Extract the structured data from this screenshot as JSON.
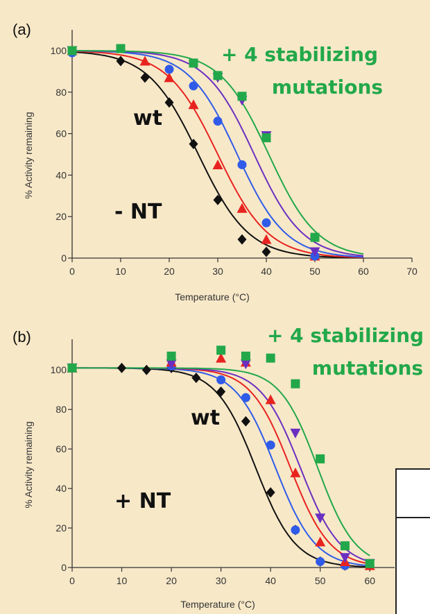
{
  "colors": {
    "background": "#f7e8c8",
    "wt": "#111111",
    "series2": "#e8231f",
    "series3": "#2f5be8",
    "series4": "#6b2fc0",
    "stabilized": "#22a84a"
  },
  "chart_data": [
    {
      "type": "scatter",
      "panel_label": "(a)",
      "xlabel": "Temperature (°C)",
      "ylabel": "% Activity remaining",
      "xlim": [
        0,
        70
      ],
      "ylim": [
        0,
        100
      ],
      "xticks": [
        0,
        10,
        20,
        30,
        40,
        50,
        60,
        70
      ],
      "yticks": [
        0,
        20,
        40,
        60,
        80,
        100
      ],
      "annotations": [
        {
          "text": "+ 4 stabilizing",
          "color": "#22a84a"
        },
        {
          "text": "mutations",
          "color": "#22a84a"
        },
        {
          "text": "wt",
          "color": "#111111"
        },
        {
          "text": "- NT",
          "color": "#111111"
        }
      ],
      "series": [
        {
          "marker": "diamond",
          "color": "#111111",
          "tm": 26,
          "k": 5.2,
          "points": [
            [
              0,
              100
            ],
            [
              10,
              95
            ],
            [
              15,
              87
            ],
            [
              20,
              75
            ],
            [
              25,
              55
            ],
            [
              30,
              28
            ],
            [
              35,
              9
            ],
            [
              40,
              3
            ]
          ]
        },
        {
          "marker": "triangle",
          "color": "#e8231f",
          "tm": 30,
          "k": 5.2,
          "points": [
            [
              0,
              100
            ],
            [
              15,
              95
            ],
            [
              20,
              87
            ],
            [
              25,
              74
            ],
            [
              30,
              45
            ],
            [
              35,
              24
            ],
            [
              40,
              9
            ],
            [
              50,
              1
            ]
          ]
        },
        {
          "marker": "circle",
          "color": "#2f5be8",
          "tm": 34,
          "k": 5.0,
          "points": [
            [
              0,
              99
            ],
            [
              20,
              91
            ],
            [
              25,
              83
            ],
            [
              30,
              66
            ],
            [
              35,
              45
            ],
            [
              40,
              17
            ],
            [
              50,
              1
            ]
          ]
        },
        {
          "marker": "triangle-down",
          "color": "#6b2fc0",
          "tm": 37.5,
          "k": 5.0,
          "points": [
            [
              0,
              100
            ],
            [
              30,
              87
            ],
            [
              35,
              76
            ],
            [
              40,
              59
            ],
            [
              50,
              3
            ]
          ]
        },
        {
          "marker": "square",
          "color": "#22a84a",
          "tm": 40.5,
          "k": 5.0,
          "points": [
            [
              0,
              100
            ],
            [
              10,
              101
            ],
            [
              25,
              94
            ],
            [
              30,
              88
            ],
            [
              35,
              78
            ],
            [
              40,
              58
            ],
            [
              50,
              10
            ]
          ]
        }
      ]
    },
    {
      "type": "scatter",
      "panel_label": "(b)",
      "xlabel": "Temperature (°C)",
      "ylabel": "% Activity remaining",
      "xlim": [
        0,
        65
      ],
      "ylim": [
        0,
        105
      ],
      "xticks": [
        0,
        10,
        20,
        30,
        40,
        50,
        60
      ],
      "yticks": [
        0,
        20,
        40,
        60,
        80,
        100
      ],
      "annotations": [
        {
          "text": "+ 4 stabilizing",
          "color": "#22a84a"
        },
        {
          "text": "mutations",
          "color": "#22a84a"
        },
        {
          "text": "wt",
          "color": "#111111"
        },
        {
          "text": "+ NT",
          "color": "#111111"
        }
      ],
      "series": [
        {
          "marker": "diamond",
          "color": "#111111",
          "tm": 37,
          "k": 4.0,
          "points": [
            [
              0,
              101
            ],
            [
              10,
              101
            ],
            [
              15,
              100
            ],
            [
              20,
              101
            ],
            [
              25,
              96
            ],
            [
              30,
              89
            ],
            [
              35,
              74
            ],
            [
              40,
              38
            ],
            [
              45,
              19
            ],
            [
              50,
              3
            ],
            [
              55,
              1
            ],
            [
              60,
              1
            ]
          ]
        },
        {
          "marker": "circle",
          "color": "#2f5be8",
          "tm": 41,
          "k": 4.0,
          "points": [
            [
              0,
              101
            ],
            [
              20,
              102
            ],
            [
              30,
              95
            ],
            [
              35,
              86
            ],
            [
              40,
              62
            ],
            [
              45,
              19
            ],
            [
              50,
              3
            ],
            [
              55,
              1
            ]
          ]
        },
        {
          "marker": "triangle",
          "color": "#e8231f",
          "tm": 44,
          "k": 4.0,
          "points": [
            [
              0,
              101
            ],
            [
              20,
              104
            ],
            [
              30,
              106
            ],
            [
              35,
              104
            ],
            [
              40,
              85
            ],
            [
              45,
              48
            ],
            [
              50,
              13
            ],
            [
              55,
              3
            ],
            [
              60,
              1
            ]
          ]
        },
        {
          "marker": "triangle-down",
          "color": "#6b2fc0",
          "tm": 46,
          "k": 4.0,
          "points": [
            [
              0,
              101
            ],
            [
              20,
              103
            ],
            [
              35,
              103
            ],
            [
              45,
              68
            ],
            [
              50,
              25
            ],
            [
              55,
              5
            ],
            [
              60,
              2
            ]
          ]
        },
        {
          "marker": "square",
          "color": "#22a84a",
          "tm": 49.5,
          "k": 3.8,
          "points": [
            [
              0,
              101
            ],
            [
              20,
              107
            ],
            [
              30,
              110
            ],
            [
              35,
              107
            ],
            [
              40,
              106
            ],
            [
              45,
              93
            ],
            [
              50,
              55
            ],
            [
              55,
              11
            ],
            [
              60,
              2
            ]
          ]
        }
      ]
    }
  ]
}
